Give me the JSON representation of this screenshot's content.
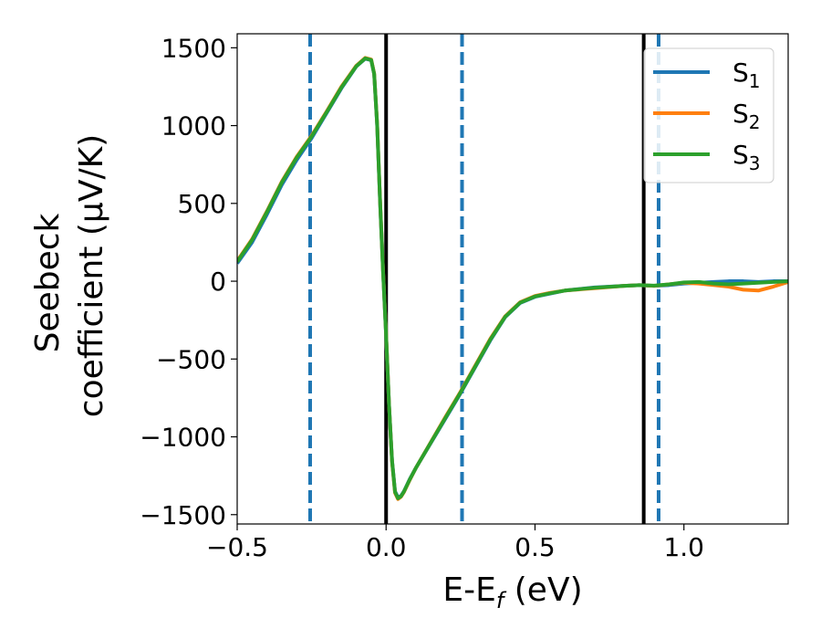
{
  "chart_data": {
    "type": "line",
    "xlabel": "E-E",
    "xlabel_sub": "f",
    "xlabel_unit": " (eV)",
    "ylabel_line1": "Seebeck",
    "ylabel_line2": "coefficient  (μV/K)",
    "xlim": [
      -0.5,
      1.35
    ],
    "ylim": [
      -1560,
      1590
    ],
    "x_ticks": [
      -0.5,
      0.0,
      0.5,
      1.0
    ],
    "x_tick_labels": [
      "−0.5",
      "0.0",
      "0.5",
      "1.0"
    ],
    "y_ticks": [
      1500,
      1000,
      500,
      0,
      -500,
      -1000,
      -1500
    ],
    "y_tick_labels": [
      "1500",
      "1000",
      "500",
      "0",
      "−500",
      "−1000",
      "−1500"
    ],
    "grid": false,
    "legend_position": "top-right",
    "vlines_solid": [
      0.0,
      0.865
    ],
    "vlines_dashed": [
      -0.255,
      0.255,
      0.915
    ],
    "vline_solid_color": "#000000",
    "vline_dashed_color": "#1f77b4",
    "series": [
      {
        "name": "S",
        "sub": "1",
        "color": "#1f77b4",
        "x": [
          -0.5,
          -0.45,
          -0.4,
          -0.35,
          -0.3,
          -0.25,
          -0.2,
          -0.15,
          -0.1,
          -0.07,
          -0.05,
          -0.04,
          -0.03,
          -0.02,
          -0.01,
          0.0,
          0.01,
          0.02,
          0.03,
          0.04,
          0.05,
          0.06,
          0.08,
          0.1,
          0.15,
          0.2,
          0.25,
          0.3,
          0.35,
          0.4,
          0.45,
          0.5,
          0.55,
          0.6,
          0.7,
          0.8,
          0.85,
          0.9,
          0.95,
          1.0,
          1.05,
          1.1,
          1.15,
          1.2,
          1.25,
          1.3,
          1.35
        ],
        "y": [
          115,
          250,
          430,
          620,
          780,
          920,
          1080,
          1240,
          1380,
          1430,
          1420,
          1330,
          1000,
          500,
          50,
          -350,
          -800,
          -1150,
          -1350,
          -1390,
          -1380,
          -1350,
          -1270,
          -1200,
          -1040,
          -880,
          -720,
          -550,
          -380,
          -230,
          -140,
          -100,
          -80,
          -60,
          -40,
          -30,
          -25,
          -30,
          -25,
          -15,
          -10,
          -5,
          0,
          0,
          -5,
          0,
          0
        ]
      },
      {
        "name": "S",
        "sub": "2",
        "color": "#ff7f0e",
        "x": [
          -0.5,
          -0.45,
          -0.4,
          -0.35,
          -0.3,
          -0.25,
          -0.2,
          -0.15,
          -0.1,
          -0.07,
          -0.05,
          -0.04,
          -0.03,
          -0.02,
          -0.01,
          0.0,
          0.01,
          0.02,
          0.03,
          0.04,
          0.05,
          0.06,
          0.08,
          0.1,
          0.15,
          0.2,
          0.25,
          0.3,
          0.35,
          0.4,
          0.45,
          0.5,
          0.55,
          0.6,
          0.7,
          0.8,
          0.85,
          0.9,
          0.95,
          1.0,
          1.05,
          1.1,
          1.15,
          1.2,
          1.25,
          1.3,
          1.35
        ],
        "y": [
          130,
          270,
          450,
          640,
          800,
          935,
          1090,
          1250,
          1385,
          1435,
          1425,
          1335,
          1010,
          510,
          60,
          -340,
          -800,
          -1160,
          -1360,
          -1400,
          -1385,
          -1355,
          -1275,
          -1200,
          -1035,
          -870,
          -710,
          -540,
          -370,
          -225,
          -135,
          -95,
          -75,
          -60,
          -45,
          -30,
          -25,
          -30,
          -20,
          -10,
          -15,
          -25,
          -35,
          -55,
          -60,
          -35,
          -5
        ]
      },
      {
        "name": "S",
        "sub": "3",
        "color": "#2ca02c",
        "x": [
          -0.5,
          -0.45,
          -0.4,
          -0.35,
          -0.3,
          -0.25,
          -0.2,
          -0.15,
          -0.1,
          -0.07,
          -0.05,
          -0.04,
          -0.03,
          -0.02,
          -0.01,
          0.0,
          0.01,
          0.02,
          0.03,
          0.04,
          0.05,
          0.06,
          0.08,
          0.1,
          0.15,
          0.2,
          0.25,
          0.3,
          0.35,
          0.4,
          0.45,
          0.5,
          0.55,
          0.6,
          0.7,
          0.8,
          0.85,
          0.9,
          0.95,
          1.0,
          1.05,
          1.1,
          1.15,
          1.2,
          1.25,
          1.3,
          1.35
        ],
        "y": [
          125,
          265,
          445,
          635,
          795,
          930,
          1085,
          1245,
          1382,
          1432,
          1422,
          1332,
          1005,
          505,
          55,
          -345,
          -800,
          -1155,
          -1355,
          -1395,
          -1382,
          -1352,
          -1272,
          -1200,
          -1037,
          -875,
          -715,
          -545,
          -375,
          -228,
          -138,
          -98,
          -78,
          -60,
          -42,
          -30,
          -25,
          -28,
          -20,
          -8,
          -5,
          -15,
          -20,
          -15,
          -10,
          -5,
          0
        ]
      }
    ]
  }
}
